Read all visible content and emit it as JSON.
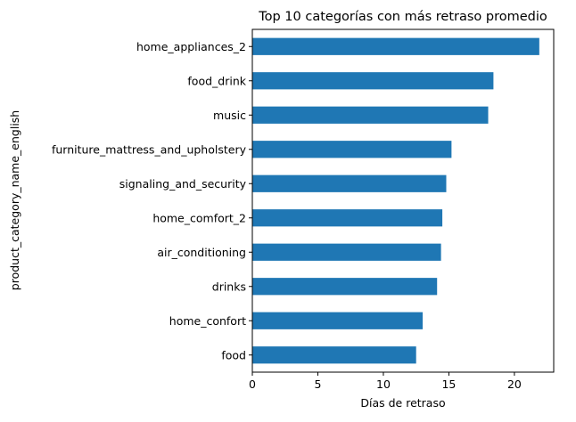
{
  "chart_data": {
    "type": "bar",
    "orientation": "horizontal",
    "title": "Top 10 categorías con más retraso promedio",
    "xlabel": "Días de retraso",
    "ylabel": "product_category_name_english",
    "categories": [
      "home_appliances_2",
      "food_drink",
      "music",
      "furniture_mattress_and_upholstery",
      "signaling_and_security",
      "home_comfort_2",
      "air_conditioning",
      "drinks",
      "home_confort",
      "food"
    ],
    "values": [
      21.9,
      18.4,
      18.0,
      15.2,
      14.8,
      14.5,
      14.4,
      14.1,
      13.0,
      12.5
    ],
    "xlim": [
      0,
      23
    ],
    "xticks": [
      0,
      5,
      10,
      15,
      20
    ],
    "grid": false,
    "legend": "none",
    "bar_color": "#1f77b4"
  }
}
